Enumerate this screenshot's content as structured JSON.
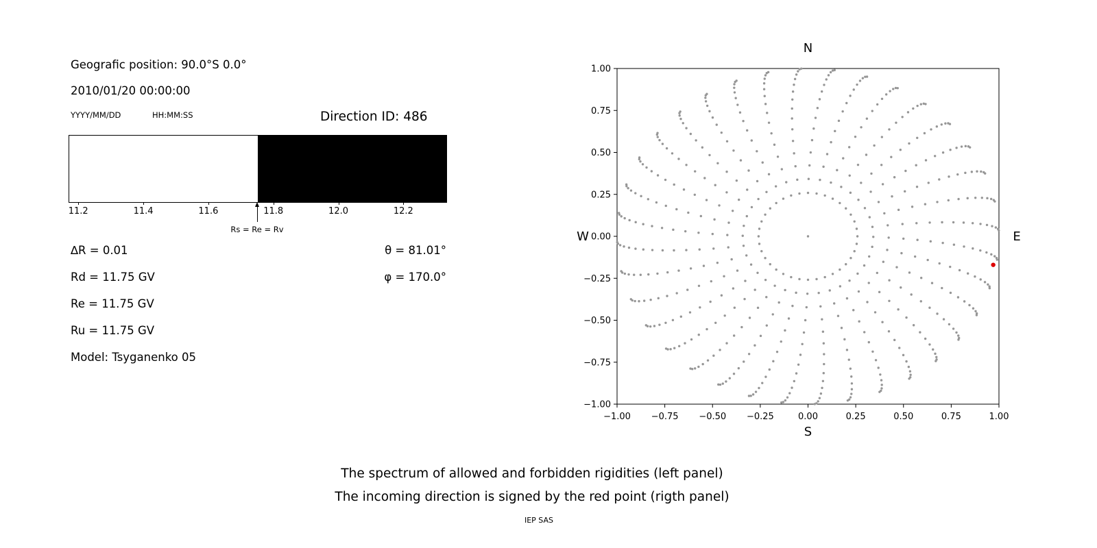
{
  "left_panel": {
    "position_label": "Geografic position: 90.0°S 0.0°",
    "datetime": "2010/01/20 00:00:00",
    "date_format": "YYYY/MM/DD",
    "time_format": "HH:MM:SS",
    "direction_id": "Direction ID: 486",
    "params_left": [
      "∆R = 0.01",
      "Rd = 11.75 GV",
      "Re = 11.75 GV",
      "Ru = 11.75 GV",
      "Model: Tsyganenko 05"
    ],
    "params_right": [
      "θ = 81.01°",
      "φ = 170.0°"
    ]
  },
  "caption": {
    "line1": "The spectrum of allowed and forbidden rigidities (left panel)",
    "line2": "The incoming direction is signed by the red point (rigth panel)",
    "credit": "IEP SAS"
  },
  "chart_data": [
    {
      "type": "area",
      "title": "",
      "xlabel": "",
      "ylabel": "",
      "xlim": [
        11.17,
        12.33
      ],
      "xticks": [
        11.2,
        11.4,
        11.6,
        11.8,
        12.0,
        12.2
      ],
      "regions": [
        {
          "label": "allowed",
          "from": 11.17,
          "to": 11.75,
          "color": "#ffffff"
        },
        {
          "label": "forbidden",
          "from": 11.75,
          "to": 12.33,
          "color": "#000000"
        }
      ],
      "marker": {
        "x": 11.75,
        "label": "Rs = Re = Rv"
      },
      "values": {
        "deltaR": 0.01,
        "Rd": 11.75,
        "Re": 11.75,
        "Ru": 11.75,
        "Rs": 11.75,
        "Rv": 11.75,
        "theta_deg": 81.01,
        "phi_deg": 170.0,
        "direction_id": 486
      }
    },
    {
      "type": "scatter",
      "title": "",
      "xlabel": "",
      "ylabel": "",
      "xlim": [
        -1.0,
        1.0
      ],
      "ylim": [
        -1.0,
        1.0
      ],
      "xticks": [
        -1.0,
        -0.75,
        -0.5,
        -0.25,
        0.0,
        0.25,
        0.5,
        0.75,
        1.0
      ],
      "yticks": [
        -1.0,
        -0.75,
        -0.5,
        -0.25,
        0.0,
        0.25,
        0.5,
        0.75,
        1.0
      ],
      "tick_decimals": 2,
      "grid": false,
      "compass": {
        "top": "N",
        "bottom": "S",
        "left": "W",
        "right": "E"
      },
      "dots": {
        "pattern": "radial-direction-grid",
        "azimuth_start_deg": 0,
        "azimuth_step_deg": 10,
        "azimuth_count": 36,
        "zenith_start_deg": 15,
        "zenith_step_deg": 5,
        "zenith_end_deg": 90,
        "radius_rule": "sin(zenith)",
        "spoke_curl_deg": 8,
        "color": "#969696",
        "dot_radius_px": 1.7
      },
      "center_dot": {
        "x": 0.0,
        "y": 0.0
      },
      "red_point": {
        "x": 0.97,
        "y": -0.17,
        "color": "#dd0000",
        "radius_px": 3.2
      }
    }
  ]
}
